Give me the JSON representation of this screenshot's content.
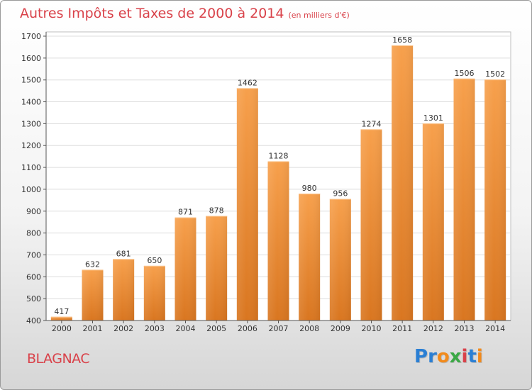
{
  "header": {
    "title": "Autres Impôts et Taxes de 2000 à 2014",
    "subtitle": "(en milliers d'€)"
  },
  "footer": {
    "city": "BLAGNAC",
    "brand": "Proxiti",
    "brand_letters": [
      {
        "char": "P",
        "color": "#2a7fd4"
      },
      {
        "char": "r",
        "color": "#2a7fd4"
      },
      {
        "char": "o",
        "color": "#f28a1b"
      },
      {
        "char": "x",
        "color": "#3aa845"
      },
      {
        "char": "i",
        "color": "#d9424a"
      },
      {
        "char": "t",
        "color": "#2a7fd4"
      },
      {
        "char": "i",
        "color": "#f28a1b"
      }
    ]
  },
  "colors": {
    "title": "#d9424a",
    "bar_top": "#f7a04c",
    "bar_bottom": "#d97620",
    "axis": "#555555",
    "grid": "#dddddd"
  },
  "chart_data": {
    "type": "bar",
    "title": "Autres Impôts et Taxes de 2000 à 2014",
    "subtitle": "(en milliers d'€)",
    "xlabel": "",
    "ylabel": "",
    "categories": [
      "2000",
      "2001",
      "2002",
      "2003",
      "2004",
      "2005",
      "2006",
      "2007",
      "2008",
      "2009",
      "2010",
      "2011",
      "2012",
      "2013",
      "2014"
    ],
    "values": [
      417,
      632,
      681,
      650,
      871,
      878,
      1462,
      1128,
      980,
      956,
      1274,
      1658,
      1301,
      1506,
      1502
    ],
    "data_labels": [
      "417",
      "632",
      "681",
      "650",
      "871",
      "878",
      "1462",
      "1128",
      "980",
      "956",
      "1274",
      "1658",
      "1301",
      "1506",
      "1502"
    ],
    "yticks": [
      "400",
      "500",
      "600",
      "700",
      "800",
      "900",
      "1000",
      "1100",
      "1200",
      "1300",
      "1400",
      "1500",
      "1600",
      "1700"
    ],
    "ylim": [
      400,
      1700
    ],
    "grid": true,
    "legend": "none"
  }
}
